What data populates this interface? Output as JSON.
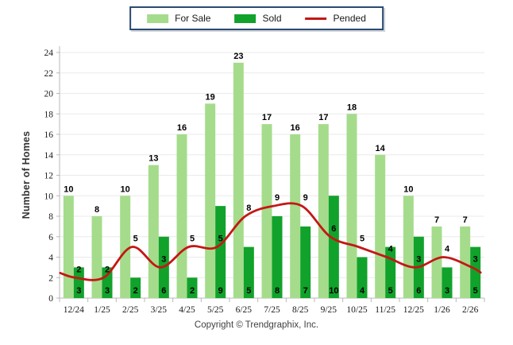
{
  "legend": {
    "items": [
      {
        "label": "For Sale",
        "color": "#A5DC8C",
        "type": "box"
      },
      {
        "label": "Sold",
        "color": "#11A22B",
        "type": "box"
      },
      {
        "label": "Pended",
        "color": "#C41715",
        "type": "line"
      }
    ]
  },
  "ylabel": "Number of Homes",
  "footer": "Copyright © Trendgraphix, Inc.",
  "colors": {
    "for_sale": "#A5DC8C",
    "sold": "#11A22B",
    "pended": "#C41715",
    "gridline": "#EAEAEA",
    "axis": "#B8B8B8",
    "tick_text": "#1a1a1a",
    "data_label": "#000000"
  },
  "chart_data": {
    "type": "bar",
    "categories": [
      "12/24",
      "1/25",
      "2/25",
      "3/25",
      "4/25",
      "5/25",
      "6/25",
      "7/25",
      "8/25",
      "9/25",
      "10/25",
      "11/25",
      "12/25",
      "1/26",
      "2/26"
    ],
    "series": [
      {
        "name": "For Sale",
        "type": "bar",
        "color": "#A5DC8C",
        "values": [
          10,
          8,
          10,
          13,
          16,
          19,
          23,
          17,
          16,
          17,
          18,
          14,
          10,
          7,
          7
        ]
      },
      {
        "name": "Sold",
        "type": "bar",
        "color": "#11A22B",
        "values": [
          3,
          3,
          2,
          6,
          2,
          9,
          5,
          8,
          7,
          10,
          4,
          5,
          6,
          3,
          5
        ]
      },
      {
        "name": "Pended",
        "type": "line",
        "color": "#C41715",
        "values": [
          2,
          2,
          5,
          3,
          5,
          5,
          8,
          9,
          9,
          6,
          5,
          4,
          3,
          4,
          3
        ]
      }
    ],
    "title": "",
    "xlabel": "",
    "ylabel": "Number of Homes",
    "ylim": [
      0,
      24
    ],
    "ytick_step": 2,
    "grid": true,
    "legend_position": "top"
  }
}
